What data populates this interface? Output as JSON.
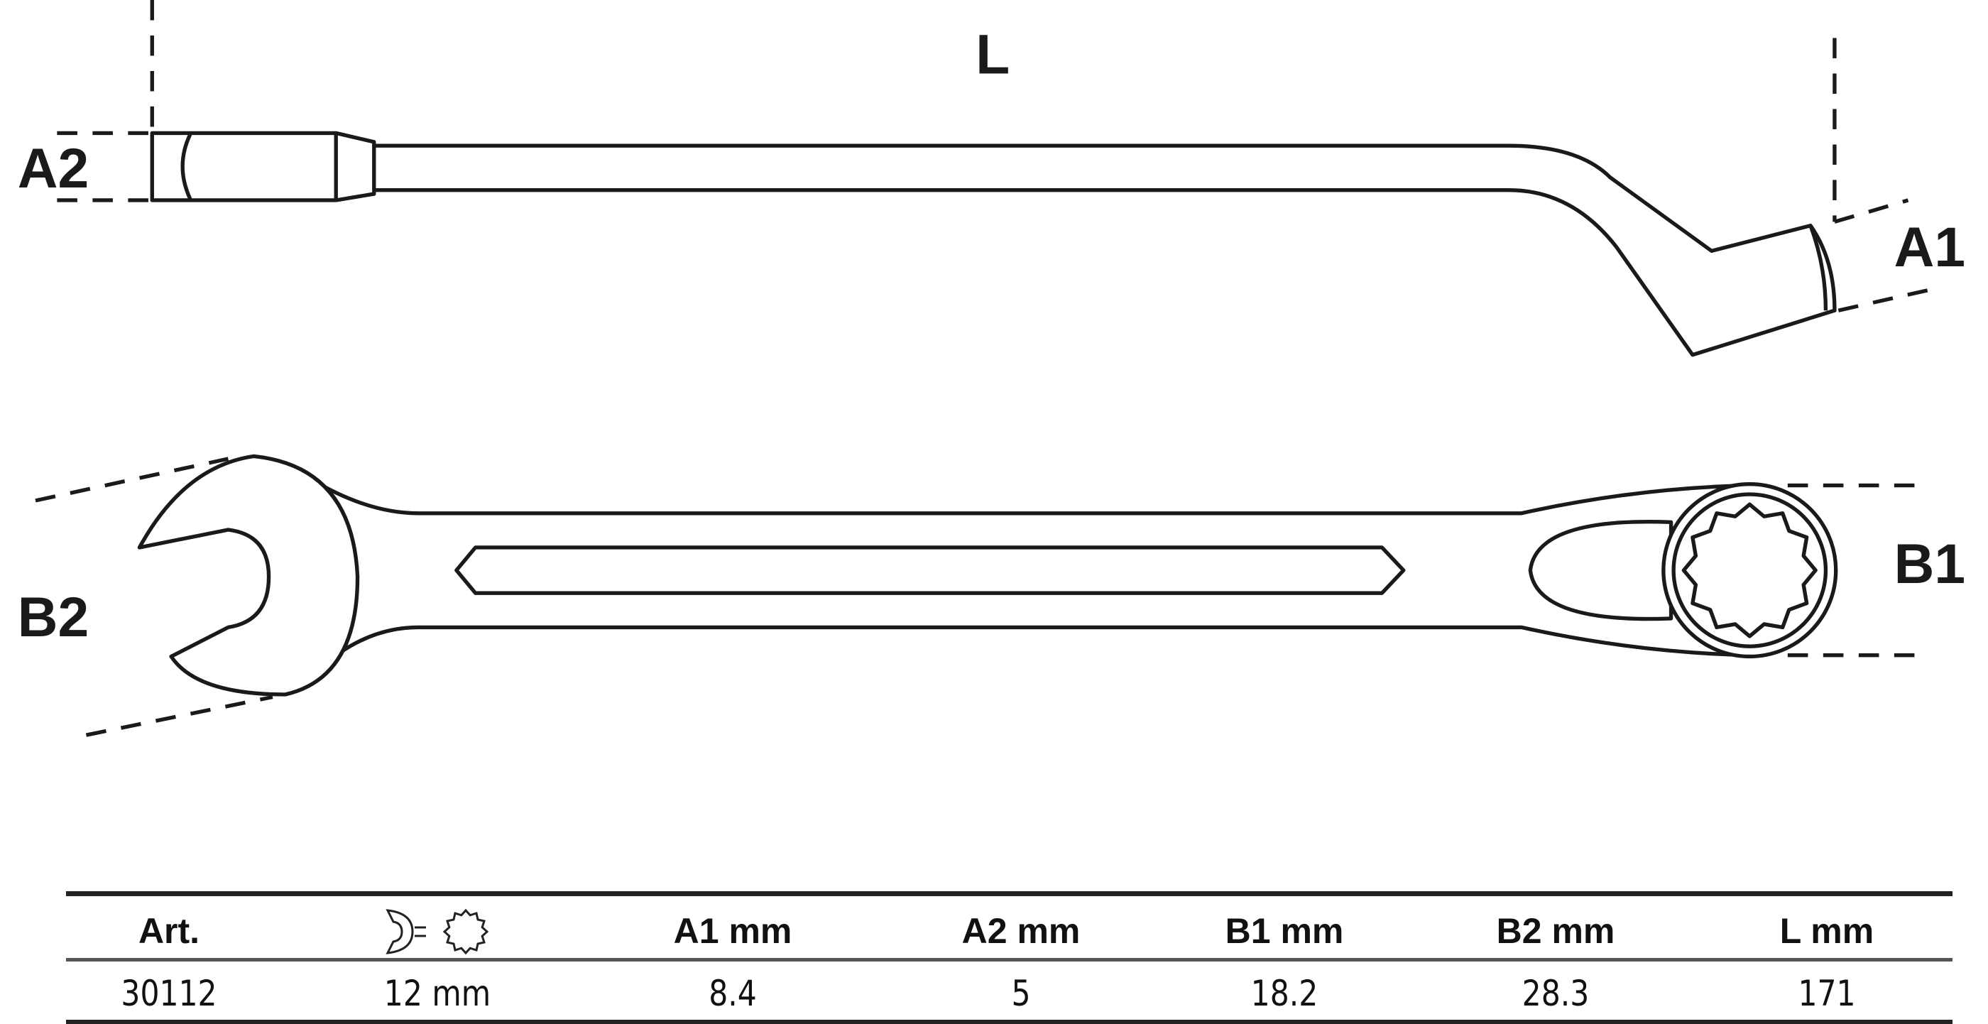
{
  "dimension_labels": {
    "L": "L",
    "A1": "A1",
    "A2": "A2",
    "B1": "B1",
    "B2": "B2"
  },
  "table": {
    "headers": [
      "Art.",
      "",
      "A1  mm",
      "A2  mm",
      "B1  mm",
      "B2  mm",
      "L  mm"
    ],
    "header_icon": "combination-wrench-open-ring-icon",
    "row": [
      "30112",
      "12 mm",
      "8.4",
      "5",
      "18.2",
      "28.3",
      "171"
    ]
  }
}
